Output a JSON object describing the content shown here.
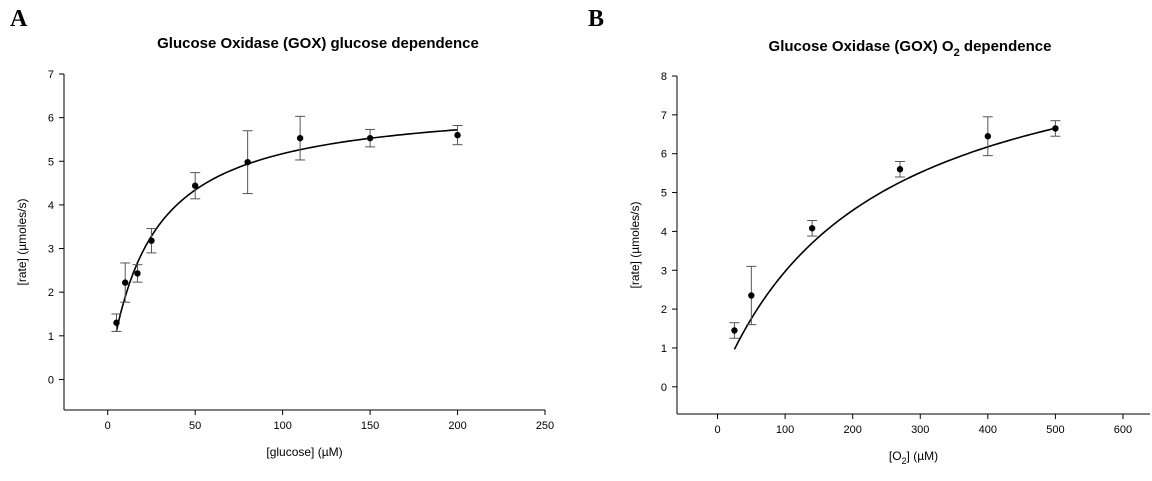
{
  "chart_data": [
    {
      "panel": "A",
      "type": "scatter",
      "title": "Glucose Oxidase (GOX)   glucose dependence",
      "xlabel": "[glucose]   (µM)",
      "ylabel": "[rate]   (µmoles/s)",
      "xlim": [
        -25,
        250
      ],
      "ylim": [
        -0.7,
        7
      ],
      "xticks": [
        0,
        50,
        100,
        150,
        200,
        250
      ],
      "yticks": [
        0,
        1,
        2,
        3,
        4,
        5,
        6,
        7
      ],
      "grid": false,
      "points": [
        {
          "x": 5,
          "y": 1.3,
          "err": 0.2
        },
        {
          "x": 10,
          "y": 2.22,
          "err": 0.45
        },
        {
          "x": 17,
          "y": 2.43,
          "err": 0.2
        },
        {
          "x": 25,
          "y": 3.18,
          "err": 0.28
        },
        {
          "x": 50,
          "y": 4.44,
          "err": 0.3
        },
        {
          "x": 80,
          "y": 4.98,
          "err": 0.72
        },
        {
          "x": 110,
          "y": 5.53,
          "err": 0.5
        },
        {
          "x": 150,
          "y": 5.53,
          "err": 0.2
        },
        {
          "x": 200,
          "y": 5.6,
          "err": 0.22
        }
      ],
      "fit": {
        "vmax": 6.4,
        "km": 23.7,
        "x_range": [
          5,
          200
        ]
      }
    },
    {
      "panel": "B",
      "type": "scatter",
      "title": "Glucose Oxidase (GOX)   O",
      "title_sub": "2",
      "title_tail": " dependence",
      "xlabel": "[O",
      "xlabel_sub": "2",
      "xlabel_tail": "]   (µM)",
      "ylabel": "[rate]   (µmoles/s)",
      "xlim": [
        -60,
        640
      ],
      "ylim": [
        -0.7,
        8
      ],
      "xticks": [
        0,
        100,
        200,
        300,
        400,
        500,
        600
      ],
      "yticks": [
        0,
        1,
        2,
        3,
        4,
        5,
        6,
        7,
        8
      ],
      "grid": false,
      "points": [
        {
          "x": 25,
          "y": 1.45,
          "err": 0.2
        },
        {
          "x": 50,
          "y": 2.35,
          "err": 0.75
        },
        {
          "x": 140,
          "y": 4.08,
          "err": 0.2
        },
        {
          "x": 270,
          "y": 5.6,
          "err": 0.2
        },
        {
          "x": 400,
          "y": 6.45,
          "err": 0.5
        },
        {
          "x": 500,
          "y": 6.65,
          "err": 0.2
        }
      ],
      "fit": {
        "vmax": 9.65,
        "km": 225,
        "x_range": [
          25,
          500
        ]
      }
    }
  ],
  "panels": {
    "a_letter": "A",
    "b_letter": "B"
  }
}
